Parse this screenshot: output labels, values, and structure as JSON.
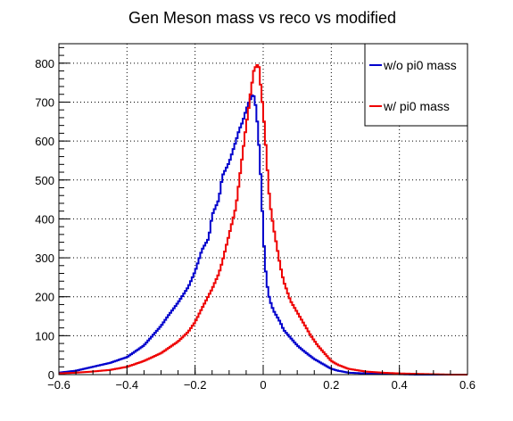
{
  "chart_data": {
    "type": "line",
    "title": "Gen Meson mass vs reco vs modified",
    "xlabel": "",
    "ylabel": "",
    "xlim": [
      -0.6,
      0.6
    ],
    "ylim": [
      0,
      850
    ],
    "xticks": [
      -0.6,
      -0.4,
      -0.2,
      0,
      0.2,
      0.4,
      0.6
    ],
    "xtick_labels": [
      "−0.6",
      "−0.4",
      "−0.2",
      "0",
      "0.2",
      "0.4",
      "0.6"
    ],
    "yticks": [
      0,
      100,
      200,
      300,
      400,
      500,
      600,
      700,
      800
    ],
    "ytick_labels": [
      "0",
      "100",
      "200",
      "300",
      "400",
      "500",
      "600",
      "700",
      "800"
    ],
    "grid": true,
    "legend_position": "top-right",
    "series": [
      {
        "name": "w/o pi0 mass",
        "color": "#0000cc",
        "style": "step",
        "x": [
          -0.6,
          -0.55,
          -0.5,
          -0.45,
          -0.4,
          -0.35,
          -0.3,
          -0.28,
          -0.25,
          -0.22,
          -0.2,
          -0.18,
          -0.16,
          -0.15,
          -0.13,
          -0.12,
          -0.1,
          -0.08,
          -0.07,
          -0.06,
          -0.05,
          -0.04,
          -0.035,
          -0.03,
          -0.025,
          -0.02,
          -0.015,
          -0.01,
          -0.005,
          0,
          0.005,
          0.01,
          0.015,
          0.02,
          0.03,
          0.04,
          0.05,
          0.06,
          0.08,
          0.1,
          0.12,
          0.15,
          0.18,
          0.2,
          0.22,
          0.25,
          0.3,
          0.35,
          0.4,
          0.45,
          0.5,
          0.55,
          0.6
        ],
        "y": [
          5,
          10,
          20,
          30,
          45,
          75,
          125,
          150,
          185,
          225,
          265,
          320,
          350,
          410,
          450,
          510,
          545,
          600,
          630,
          650,
          680,
          705,
          710,
          725,
          705,
          680,
          620,
          560,
          470,
          370,
          290,
          240,
          210,
          190,
          165,
          150,
          135,
          115,
          95,
          75,
          60,
          40,
          25,
          15,
          10,
          5,
          3,
          2,
          1,
          0,
          0,
          0,
          0
        ]
      },
      {
        "name": "w/ pi0 mass",
        "color": "#ee0000",
        "style": "step",
        "x": [
          -0.6,
          -0.55,
          -0.5,
          -0.45,
          -0.4,
          -0.35,
          -0.3,
          -0.25,
          -0.22,
          -0.2,
          -0.18,
          -0.15,
          -0.13,
          -0.12,
          -0.1,
          -0.08,
          -0.07,
          -0.06,
          -0.05,
          -0.04,
          -0.035,
          -0.03,
          -0.025,
          -0.02,
          -0.015,
          -0.01,
          -0.005,
          0,
          0.005,
          0.01,
          0.015,
          0.02,
          0.03,
          0.04,
          0.05,
          0.06,
          0.08,
          0.1,
          0.12,
          0.14,
          0.16,
          0.18,
          0.2,
          0.22,
          0.25,
          0.3,
          0.35,
          0.4,
          0.45,
          0.5,
          0.55,
          0.6
        ],
        "y": [
          3,
          5,
          8,
          12,
          20,
          35,
          55,
          85,
          110,
          135,
          170,
          220,
          260,
          290,
          360,
          430,
          500,
          570,
          640,
          700,
          740,
          760,
          800,
          780,
          810,
          770,
          720,
          680,
          620,
          560,
          490,
          440,
          380,
          330,
          280,
          240,
          190,
          160,
          130,
          100,
          75,
          55,
          35,
          25,
          15,
          8,
          5,
          3,
          2,
          1,
          0,
          0
        ]
      }
    ]
  }
}
